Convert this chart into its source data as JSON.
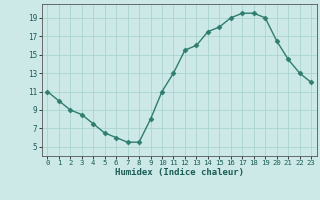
{
  "x": [
    0,
    1,
    2,
    3,
    4,
    5,
    6,
    7,
    8,
    9,
    10,
    11,
    12,
    13,
    14,
    15,
    16,
    17,
    18,
    19,
    20,
    21,
    22,
    23
  ],
  "y": [
    11,
    10,
    9,
    8.5,
    7.5,
    6.5,
    6,
    5.5,
    5.5,
    8,
    11,
    13,
    15.5,
    16,
    17.5,
    18,
    19,
    19.5,
    19.5,
    19,
    16.5,
    14.5,
    13,
    12
  ],
  "line_color": "#2e7d6e",
  "marker": "D",
  "marker_size": 2.5,
  "bg_color": "#cce9e7",
  "grid_color": "#aad4d1",
  "xlabel": "Humidex (Indice chaleur)",
  "xlim": [
    -0.5,
    23.5
  ],
  "ylim": [
    4,
    20.5
  ],
  "xticks": [
    0,
    1,
    2,
    3,
    4,
    5,
    6,
    7,
    8,
    9,
    10,
    11,
    12,
    13,
    14,
    15,
    16,
    17,
    18,
    19,
    20,
    21,
    22,
    23
  ],
  "yticks": [
    5,
    7,
    9,
    11,
    13,
    15,
    17,
    19
  ],
  "line_width": 1.0
}
